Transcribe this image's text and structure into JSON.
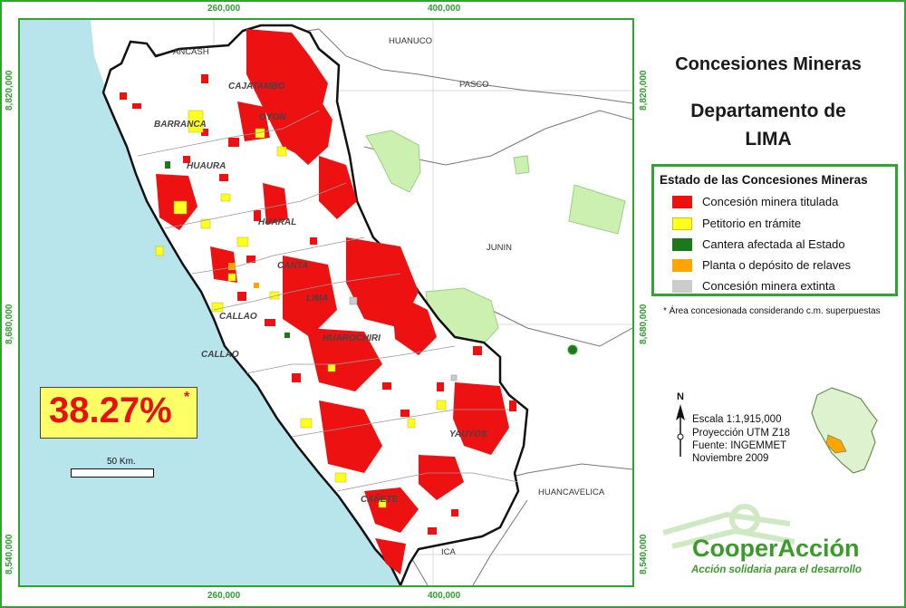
{
  "map": {
    "title": "Concesiones Mineras",
    "subtitle_line1": "Departamento de",
    "subtitle_line2": "LIMA",
    "x_ticks": [
      "260,000",
      "400,000"
    ],
    "y_ticks": [
      "8,820,000",
      "8,680,000",
      "8,540,000"
    ],
    "regions": [
      "ANCASH",
      "HUANUCO",
      "PASCO",
      "JUNIN",
      "HUANCAVELICA",
      "ICA"
    ],
    "provinces": [
      "CAJATAMBO",
      "OYON",
      "HUAURA",
      "HUARAL",
      "CANTA",
      "LIMA",
      "CALLAO",
      "HUAROCHIRI",
      "YAUYOS",
      "CAÑETE",
      "BARRANCA",
      "CALLAO"
    ]
  },
  "legend": {
    "title": "Estado de las Concesiones Mineras",
    "items": [
      {
        "label": "Concesión minera titulada",
        "color": "#ee1111"
      },
      {
        "label": "Petitorio en trámite",
        "color": "#ffff22"
      },
      {
        "label": "Cantera afectada al Estado",
        "color": "#1a7a1a"
      },
      {
        "label": "Planta o depósito de relaves",
        "color": "#ffa500"
      },
      {
        "label": "Concesión minera extinta",
        "color": "#cccccc"
      }
    ],
    "note": "* Área concesionada considerando c.m. superpuestas"
  },
  "stat": {
    "value": "38.27%",
    "marker": "*"
  },
  "scale_bar": {
    "label": "50 Km."
  },
  "info": {
    "north": "N",
    "scale": "Escala 1:1,915,000",
    "projection": "Proyección UTM Z18",
    "source": "Fuente: INGEMMET",
    "date": "Noviembre 2009"
  },
  "logo": {
    "name": "CooperAcción",
    "tagline": "Acción solidaria para el desarrollo"
  },
  "colors": {
    "frame": "#2fa52f",
    "sea": "#b8e4ec",
    "concession": "#ee1111",
    "petition": "#ffff22",
    "protected": "#ccf0b0"
  }
}
